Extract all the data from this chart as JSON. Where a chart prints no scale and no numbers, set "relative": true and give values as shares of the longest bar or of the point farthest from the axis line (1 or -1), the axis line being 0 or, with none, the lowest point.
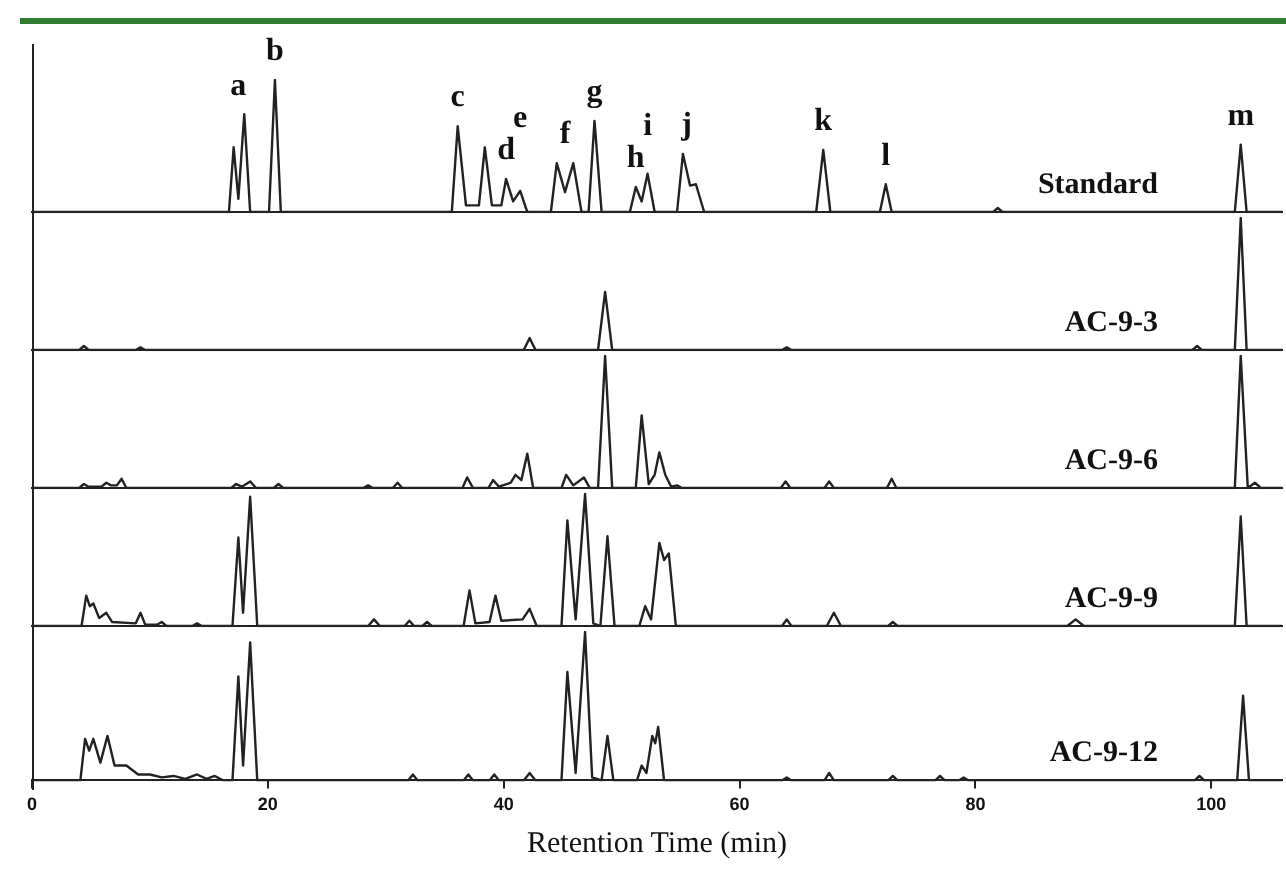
{
  "chart_data": [
    {
      "type": "line",
      "relative": true,
      "xlim": [
        0,
        106
      ],
      "xticks": [
        0,
        20,
        40,
        60,
        80,
        100
      ],
      "tick_labels": false,
      "series": [
        {
          "name": "Standard",
          "color": "#222222",
          "x": [
            0,
            14,
            16.7,
            17.1,
            17.5,
            18.0,
            18.5,
            20.1,
            20.6,
            21.1,
            35.6,
            36.1,
            36.8,
            37.9,
            38.4,
            39.0,
            39.8,
            40.2,
            40.8,
            41.4,
            42.0,
            44.0,
            44.5,
            45.2,
            45.9,
            46.6,
            47.2,
            47.7,
            48.3,
            50.7,
            51.2,
            51.7,
            52.2,
            52.8,
            54.7,
            55.2,
            55.8,
            56.3,
            57.0,
            66.5,
            67.1,
            67.7,
            71.9,
            72.4,
            72.9,
            81.5,
            81.9,
            82.3,
            102.0,
            102.5,
            103.0,
            106
          ],
          "values": [
            0,
            0,
            0,
            0.49,
            0.1,
            0.74,
            0,
            0,
            1,
            0,
            0,
            0.65,
            0.05,
            0.05,
            0.49,
            0.05,
            0.05,
            0.25,
            0.08,
            0.16,
            0,
            0,
            0.37,
            0.15,
            0.37,
            0,
            0,
            0.69,
            0,
            0,
            0.19,
            0.08,
            0.29,
            0,
            0,
            0.44,
            0.2,
            0.21,
            0,
            0,
            0.47,
            0,
            0,
            0.21,
            0,
            0,
            0.03,
            0,
            0,
            0.51,
            0,
            0
          ]
        }
      ],
      "annotations": [
        {
          "text": "a",
          "x": 17.5,
          "y": 0.74
        },
        {
          "text": "b",
          "x": 20.6,
          "y": 1
        },
        {
          "text": "c",
          "x": 36.1,
          "y": 0.65
        },
        {
          "text": "d",
          "x": 40.2,
          "y": 0.25
        },
        {
          "text": "e",
          "x": 41.4,
          "y": 0.16
        },
        {
          "text": "f",
          "x": 45.2,
          "y": 0.37
        },
        {
          "text": "g",
          "x": 47.7,
          "y": 0.69
        },
        {
          "text": "h",
          "x": 51.2,
          "y": 0.19
        },
        {
          "text": "i",
          "x": 52.2,
          "y": 0.29
        },
        {
          "text": "j",
          "x": 55.5,
          "y": 0.44
        },
        {
          "text": "k",
          "x": 67.1,
          "y": 0.47
        },
        {
          "text": "l",
          "x": 72.4,
          "y": 0.21
        },
        {
          "text": "m",
          "x": 102.5,
          "y": 0.51
        }
      ]
    },
    {
      "type": "line",
      "relative": true,
      "xlim": [
        0,
        106
      ],
      "xticks": [
        0,
        20,
        40,
        60,
        80,
        100
      ],
      "tick_labels": false,
      "series": [
        {
          "name": "AC-9-3",
          "color": "#222222",
          "x": [
            0,
            4.0,
            4.4,
            4.8,
            8.8,
            9.2,
            9.6,
            41.7,
            42.2,
            42.7,
            48.0,
            48.6,
            49.2,
            63.6,
            64.0,
            64.4,
            98.4,
            98.8,
            99.2,
            102.0,
            102.5,
            103.0,
            106
          ],
          "values": [
            0,
            0,
            0.03,
            0,
            0,
            0.02,
            0,
            0,
            0.09,
            0,
            0,
            0.44,
            0,
            0,
            0.02,
            0,
            0,
            0.03,
            0,
            0,
            1,
            0,
            0
          ]
        }
      ]
    },
    {
      "type": "line",
      "relative": true,
      "xlim": [
        0,
        106
      ],
      "xticks": [
        0,
        20,
        40,
        60,
        80,
        100
      ],
      "tick_labels": false,
      "series": [
        {
          "name": "AC-9-6",
          "color": "#222222",
          "x": [
            0,
            4.0,
            4.4,
            4.8,
            5.9,
            6.3,
            6.7,
            7.2,
            7.6,
            8.0,
            16.9,
            17.3,
            17.8,
            18.5,
            19.0,
            20.5,
            20.9,
            21.3,
            28.1,
            28.5,
            28.9,
            30.6,
            31.0,
            31.4,
            36.5,
            36.9,
            37.4,
            38.7,
            39.1,
            39.6,
            40.6,
            41.0,
            41.5,
            42.0,
            42.5,
            44.9,
            45.3,
            45.9,
            46.8,
            47.3,
            48.0,
            48.6,
            49.2,
            51.2,
            51.7,
            52.3,
            52.8,
            53.2,
            53.7,
            54.2,
            54.7,
            55.1,
            63.5,
            63.9,
            64.3,
            67.2,
            67.6,
            68.0,
            72.5,
            72.9,
            73.3,
            102.0,
            102.5,
            103.1,
            103.7,
            104.2,
            106
          ],
          "values": [
            0,
            0,
            0.03,
            0.01,
            0.01,
            0.04,
            0.02,
            0.02,
            0.07,
            0,
            0,
            0.03,
            0.01,
            0.05,
            0,
            0,
            0.03,
            0,
            0,
            0.02,
            0,
            0,
            0.04,
            0,
            0,
            0.08,
            0,
            0,
            0.06,
            0.01,
            0.04,
            0.1,
            0.06,
            0.26,
            0,
            0,
            0.1,
            0.02,
            0.08,
            0,
            0,
            1,
            0,
            0,
            0.55,
            0.03,
            0.1,
            0.27,
            0.1,
            0.01,
            0.02,
            0,
            0,
            0.05,
            0,
            0,
            0.05,
            0,
            0,
            0.07,
            0,
            0,
            1,
            0,
            0.04,
            0,
            0
          ]
        }
      ]
    },
    {
      "type": "line",
      "relative": true,
      "xlim": [
        0,
        106
      ],
      "xticks": [
        0,
        20,
        40,
        60,
        80,
        100
      ],
      "tick_labels": false,
      "series": [
        {
          "name": "AC-9-9",
          "color": "#222222",
          "x": [
            0,
            4.2,
            4.6,
            4.9,
            5.2,
            5.7,
            6.3,
            6.8,
            8.8,
            9.2,
            9.6,
            10.6,
            11.0,
            11.4,
            13.6,
            14.0,
            14.4,
            17.0,
            17.5,
            17.9,
            18.5,
            19.1,
            28.5,
            29.0,
            29.5,
            31.6,
            32.0,
            32.4,
            33.1,
            33.5,
            33.9,
            36.6,
            37.1,
            37.6,
            38.8,
            39.3,
            39.8,
            41.6,
            42.2,
            42.8,
            44.9,
            45.4,
            46.1,
            46.9,
            47.6,
            48.2,
            48.8,
            49.4,
            51.5,
            52.0,
            52.5,
            53.2,
            53.6,
            54.0,
            54.6,
            63.6,
            64.0,
            64.4,
            67.4,
            68.0,
            68.6,
            72.6,
            73.0,
            73.4,
            87.8,
            88.5,
            89.2,
            102.0,
            102.5,
            103.0,
            106
          ],
          "values": [
            0,
            0,
            0.23,
            0.15,
            0.17,
            0.06,
            0.1,
            0.03,
            0.02,
            0.1,
            0.01,
            0.01,
            0.03,
            0,
            0,
            0.02,
            0,
            0,
            0.67,
            0.1,
            0.98,
            0,
            0,
            0.05,
            0,
            0,
            0.04,
            0,
            0,
            0.03,
            0,
            0,
            0.27,
            0.02,
            0.03,
            0.23,
            0.04,
            0.05,
            0.13,
            0,
            0,
            0.8,
            0.05,
            1,
            0.02,
            0,
            0.68,
            0,
            0,
            0.15,
            0.05,
            0.63,
            0.5,
            0.55,
            0,
            0,
            0.05,
            0,
            0,
            0.1,
            0,
            0,
            0.03,
            0,
            0,
            0.05,
            0,
            0,
            0.83,
            0,
            0
          ]
        }
      ]
    },
    {
      "type": "line",
      "relative": true,
      "xlim": [
        0,
        106
      ],
      "xticks": [
        0,
        20,
        40,
        60,
        80,
        100
      ],
      "tick_labels": "x",
      "xlabel": "Retention Time (min)",
      "series": [
        {
          "name": "AC-9-12",
          "color": "#222222",
          "x": [
            0,
            4.1,
            4.5,
            4.85,
            5.2,
            5.8,
            6.4,
            7.0,
            8.0,
            9.0,
            10.0,
            11.0,
            12.0,
            13.0,
            14.0,
            14.8,
            15.5,
            16.2,
            17.0,
            17.5,
            17.9,
            18.5,
            19.1,
            31.9,
            32.3,
            32.7,
            36.6,
            37.0,
            37.4,
            38.8,
            39.2,
            39.6,
            41.7,
            42.2,
            42.7,
            44.9,
            45.4,
            46.1,
            46.9,
            47.5,
            48.3,
            48.8,
            49.3,
            51.3,
            51.7,
            52.1,
            52.6,
            52.85,
            53.1,
            53.6,
            63.6,
            64.0,
            64.4,
            67.2,
            67.6,
            68.0,
            72.6,
            73.0,
            73.4,
            76.6,
            77.0,
            77.4,
            78.6,
            79.0,
            79.4,
            98.6,
            99.0,
            99.4,
            102.2,
            102.7,
            103.2,
            106
          ],
          "values": [
            0,
            0,
            0.28,
            0.2,
            0.28,
            0.12,
            0.3,
            0.1,
            0.1,
            0.04,
            0.04,
            0.02,
            0.03,
            0.01,
            0.04,
            0.01,
            0.03,
            0,
            0,
            0.7,
            0.1,
            0.93,
            0,
            0,
            0.04,
            0,
            0,
            0.04,
            0,
            0,
            0.04,
            0,
            0,
            0.05,
            0,
            0,
            0.73,
            0.05,
            1,
            0.02,
            0,
            0.3,
            0,
            0,
            0.1,
            0.05,
            0.3,
            0.25,
            0.36,
            0,
            0,
            0.02,
            0,
            0,
            0.05,
            0,
            0,
            0.03,
            0,
            0,
            0.03,
            0,
            0,
            0.02,
            0,
            0,
            0.03,
            0,
            0,
            0.57,
            0,
            0
          ]
        }
      ]
    }
  ]
}
